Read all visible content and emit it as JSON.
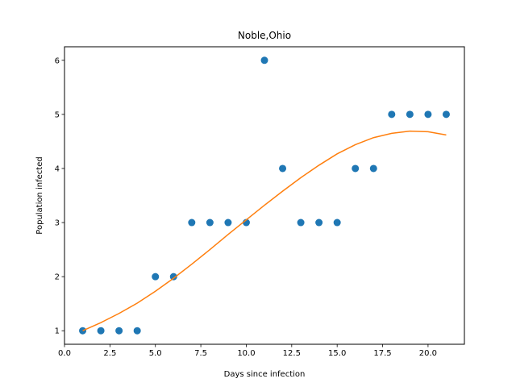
{
  "chart_data": {
    "type": "scatter",
    "title": "Noble,Ohio",
    "xlabel": "Days since infection",
    "ylabel": "Population infected",
    "xlim": [
      0.0,
      22.0
    ],
    "ylim": [
      0.75,
      6.25
    ],
    "x_ticks": [
      0.0,
      2.5,
      5.0,
      7.5,
      10.0,
      12.5,
      15.0,
      17.5,
      20.0
    ],
    "x_tick_labels": [
      "0.0",
      "2.5",
      "5.0",
      "7.5",
      "10.0",
      "12.5",
      "15.0",
      "17.5",
      "20.0"
    ],
    "y_ticks": [
      1,
      2,
      3,
      4,
      5,
      6
    ],
    "y_tick_labels": [
      "1",
      "2",
      "3",
      "4",
      "5",
      "6"
    ],
    "grid": false,
    "series": [
      {
        "kind": "scatter",
        "color": "#1f77b4",
        "x": [
          1,
          2,
          3,
          4,
          5,
          6,
          7,
          8,
          9,
          10,
          11,
          12,
          13,
          14,
          15,
          16,
          17,
          18,
          19,
          20,
          21
        ],
        "y": [
          1,
          1,
          1,
          1,
          2,
          2,
          3,
          3,
          3,
          3,
          6,
          4,
          3,
          3,
          3,
          4,
          4,
          5,
          5,
          5,
          5
        ]
      },
      {
        "kind": "line",
        "color": "#ff7f0e",
        "x": [
          1,
          2,
          3,
          4,
          5,
          6,
          7,
          8,
          9,
          10,
          11,
          12,
          13,
          14,
          15,
          16,
          17,
          18,
          19,
          20,
          21
        ],
        "y": [
          1.0,
          1.15,
          1.32,
          1.51,
          1.73,
          1.97,
          2.23,
          2.5,
          2.78,
          3.05,
          3.32,
          3.58,
          3.83,
          4.06,
          4.27,
          4.44,
          4.57,
          4.65,
          4.69,
          4.68,
          4.62
        ]
      }
    ]
  }
}
